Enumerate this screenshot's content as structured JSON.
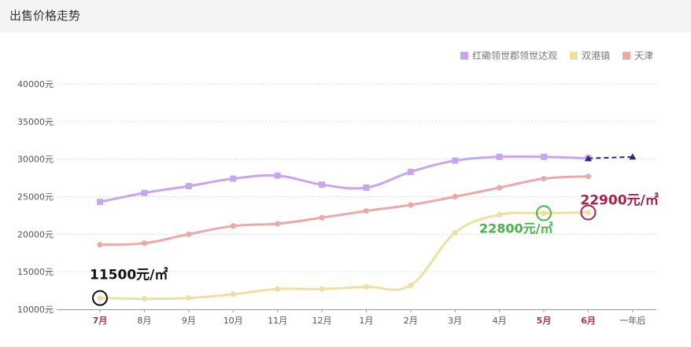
{
  "header": {
    "title": "出售价格走势"
  },
  "chart_data": {
    "type": "line",
    "title": "",
    "xlabel": "",
    "ylabel": "",
    "ylim": [
      10000,
      40000
    ],
    "yticks": [
      "10000元",
      "15000元",
      "20000元",
      "25000元",
      "30000元",
      "35000元",
      "40000元"
    ],
    "ytick_values": [
      10000,
      15000,
      20000,
      25000,
      30000,
      35000,
      40000
    ],
    "categories": [
      "7月",
      "8月",
      "9月",
      "10月",
      "11月",
      "12月",
      "1月",
      "2月",
      "3月",
      "4月",
      "5月",
      "6月",
      "一年后"
    ],
    "highlighted_categories": [
      "7月",
      "5月",
      "6月"
    ],
    "grid": "horizontal dotted",
    "legend_position": "top-right",
    "series": [
      {
        "name": "红磡领世郡领世达观",
        "color": "#c8a6ee",
        "marker": "square",
        "values": [
          24300,
          25500,
          26400,
          27400,
          27800,
          26600,
          26200,
          28300,
          29800,
          30300,
          30300,
          30100,
          null
        ]
      },
      {
        "name": "双港镇",
        "color": "#f0e0a0",
        "marker": "circle",
        "values": [
          11500,
          11400,
          11500,
          12000,
          12700,
          12700,
          13000,
          13200,
          20200,
          22600,
          22800,
          22900,
          null
        ]
      },
      {
        "name": "天津",
        "color": "#eba9a9",
        "marker": "circle",
        "values": [
          18600,
          18800,
          20000,
          21100,
          21400,
          22200,
          23100,
          23900,
          25000,
          26200,
          27400,
          27700,
          null
        ]
      }
    ],
    "forecast": {
      "from_category": "6月",
      "to_category": "一年后",
      "from_value": 30100,
      "to_value": 30300,
      "color": "#2c2c7a",
      "style": "dashed with triangle markers"
    },
    "annotations": [
      {
        "text": "11500元/㎡",
        "category": "7月",
        "value": 11500,
        "color": "#111111"
      },
      {
        "text": "22800元/㎡",
        "category": "5月",
        "value": 22800,
        "color": "#45b545"
      },
      {
        "text": "22900元/㎡",
        "category": "6月",
        "value": 22900,
        "color": "#a8234a"
      }
    ]
  }
}
